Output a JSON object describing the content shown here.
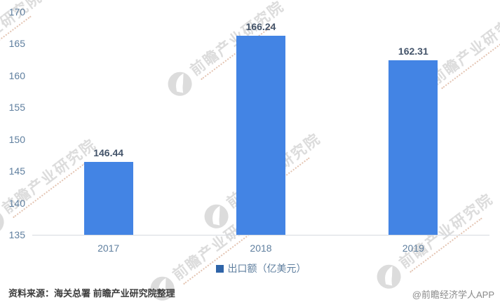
{
  "watermark": {
    "brand_text": "前瞻产业研究院"
  },
  "chart_data": {
    "type": "bar",
    "title": "",
    "xlabel": "",
    "ylabel": "",
    "categories": [
      "2017",
      "2018",
      "2019"
    ],
    "series": [
      {
        "name": "出口额（亿美元）",
        "values": [
          146.44,
          166.24,
          162.31
        ]
      }
    ],
    "value_labels": [
      "146.44",
      "166.24",
      "162.31"
    ],
    "ylim": [
      135,
      170
    ],
    "ytick_step": 5,
    "yticks": [
      135,
      140,
      145,
      150,
      155,
      160,
      165,
      170
    ],
    "grid": false,
    "legend_position": "bottom"
  },
  "legend": {
    "label": "出口额（亿美元）"
  },
  "footer": {
    "source": "资料来源：海关总署 前瞻产业研究院整理",
    "credit": "@前瞻经济学人APP"
  },
  "colors": {
    "bar": "#4384E4",
    "value_label": "#44546A",
    "axis_text": "#5F7F9F",
    "axis_line": "#D6DAE0",
    "legend_marker": "#2F64A8",
    "watermark": "#DCDCDC",
    "watermark_sub": "#E4C4B2",
    "footer_source": "#3C3C3C",
    "footer_credit": "#8A8A8A"
  }
}
